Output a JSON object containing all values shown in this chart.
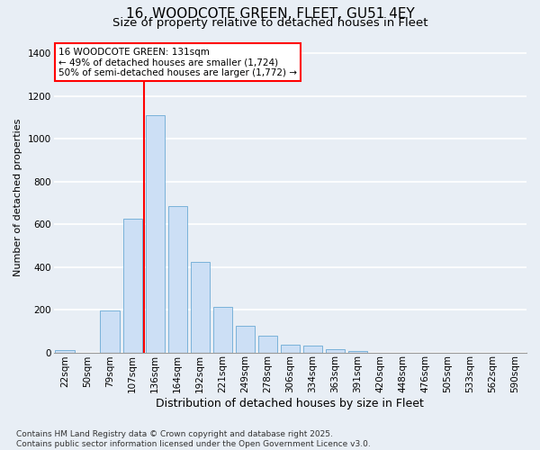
{
  "title1": "16, WOODCOTE GREEN, FLEET, GU51 4EY",
  "title2": "Size of property relative to detached houses in Fleet",
  "xlabel": "Distribution of detached houses by size in Fleet",
  "ylabel": "Number of detached properties",
  "categories": [
    "22sqm",
    "50sqm",
    "79sqm",
    "107sqm",
    "136sqm",
    "164sqm",
    "192sqm",
    "221sqm",
    "249sqm",
    "278sqm",
    "306sqm",
    "334sqm",
    "363sqm",
    "391sqm",
    "420sqm",
    "448sqm",
    "476sqm",
    "505sqm",
    "533sqm",
    "562sqm",
    "590sqm"
  ],
  "values": [
    10,
    0,
    195,
    625,
    1110,
    685,
    425,
    215,
    125,
    80,
    35,
    30,
    15,
    5,
    0,
    0,
    0,
    0,
    0,
    0,
    0
  ],
  "bar_color": "#ccdff5",
  "bar_edge_color": "#6aaad4",
  "red_line_x": 3.5,
  "annotation_text": "16 WOODCOTE GREEN: 131sqm\n← 49% of detached houses are smaller (1,724)\n50% of semi-detached houses are larger (1,772) →",
  "annotation_box_color": "white",
  "annotation_box_edge": "red",
  "ylim": [
    0,
    1450
  ],
  "yticks": [
    0,
    200,
    400,
    600,
    800,
    1000,
    1200,
    1400
  ],
  "background_color": "#e8eef5",
  "grid_color": "white",
  "footnote": "Contains HM Land Registry data © Crown copyright and database right 2025.\nContains public sector information licensed under the Open Government Licence v3.0.",
  "title1_fontsize": 11,
  "title2_fontsize": 9.5,
  "xlabel_fontsize": 9,
  "ylabel_fontsize": 8,
  "tick_fontsize": 7.5,
  "annot_fontsize": 7.5,
  "footnote_fontsize": 6.5
}
